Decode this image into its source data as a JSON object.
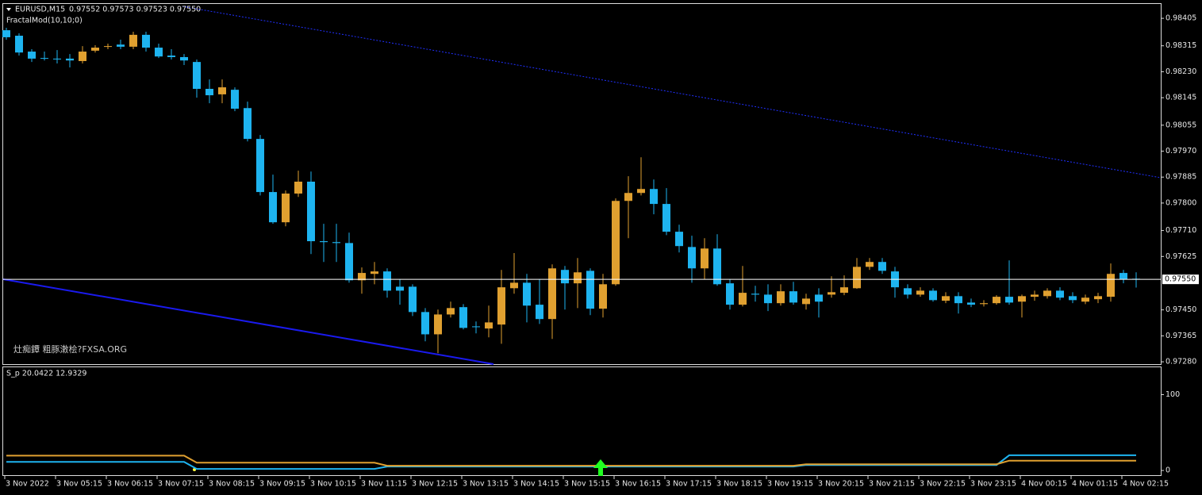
{
  "chart_data": [
    {
      "type": "candlestick",
      "title": "EURUSD,M15",
      "ohlc_text": "0.97552 0.97573 0.97523 0.97550",
      "indicator_label": "FractalMod(10,10;0)",
      "watermark": "灶痴鐔 粗豚潄桧?FXSA.ORG",
      "categories": [
        "3 Nov 2022",
        null,
        null,
        null,
        "3 Nov 05:15",
        null,
        null,
        null,
        "3 Nov 06:15",
        null,
        null,
        null,
        "3 Nov 07:15",
        null,
        null,
        null,
        "3 Nov 08:15",
        null,
        null,
        null,
        "3 Nov 09:15",
        null,
        null,
        null,
        "3 Nov 10:15",
        null,
        null,
        null,
        "3 Nov 11:15",
        null,
        null,
        null,
        "3 Nov 12:15",
        null,
        null,
        null,
        "3 Nov 13:15",
        null,
        null,
        null,
        "3 Nov 14:15",
        null,
        null,
        null,
        "3 Nov 15:15",
        null,
        null,
        null,
        "3 Nov 16:15",
        null,
        null,
        null,
        "3 Nov 17:15",
        null,
        null,
        null,
        "3 Nov 18:15",
        null,
        null,
        null,
        "3 Nov 19:15",
        null,
        null,
        null,
        "3 Nov 20:15",
        null,
        null,
        null,
        "3 Nov 21:15",
        null,
        null,
        null,
        "3 Nov 22:15",
        null,
        null,
        null,
        "3 Nov 23:15",
        null,
        null,
        null,
        "4 Nov 00:15",
        null,
        null,
        null,
        "4 Nov 01:15",
        null,
        null,
        null,
        "4 Nov 02:15",
        null
      ],
      "open": [
        0.98366,
        0.98348,
        0.98296,
        0.98275,
        0.98273,
        0.98273,
        0.98265,
        0.98299,
        0.98312,
        0.98319,
        0.98312,
        0.98351,
        0.98309,
        0.98283,
        0.98278,
        0.98262,
        0.98174,
        0.98156,
        0.98171,
        0.98111,
        0.9801,
        0.97836,
        0.97737,
        0.97831,
        0.9787,
        0.97675,
        0.97672,
        0.97669,
        0.97547,
        0.97568,
        0.97576,
        0.97526,
        0.97526,
        0.97443,
        0.9737,
        0.97435,
        0.97459,
        0.97396,
        0.97389,
        0.97402,
        0.97521,
        0.97539,
        0.97467,
        0.9742,
        0.97581,
        0.97537,
        0.97578,
        0.97454,
        0.97534,
        0.97807,
        0.97833,
        0.97846,
        0.97797,
        0.97706,
        0.97656,
        0.97586,
        0.97651,
        0.97537,
        0.97467,
        0.97503,
        0.975,
        0.97472,
        0.97511,
        0.97469,
        0.975,
        0.975,
        0.97506,
        0.97521,
        0.97591,
        0.97607,
        0.97576,
        0.97521,
        0.975,
        0.97513,
        0.9748,
        0.97495,
        0.97474,
        0.97469,
        0.97472,
        0.97493,
        0.97477,
        0.97493,
        0.97495,
        0.97513,
        0.97495,
        0.97477,
        0.97485,
        0.97493,
        0.97571,
        0.97552
      ],
      "high": [
        0.98374,
        0.98356,
        0.98304,
        0.98296,
        0.98301,
        0.98288,
        0.98314,
        0.98317,
        0.98322,
        0.98335,
        0.98361,
        0.98361,
        0.98322,
        0.98304,
        0.98288,
        0.9827,
        0.98205,
        0.98205,
        0.98179,
        0.98132,
        0.98023,
        0.97893,
        0.97841,
        0.97906,
        0.97903,
        0.97732,
        0.97732,
        0.97703,
        0.97589,
        0.97607,
        0.97586,
        0.9755,
        0.97534,
        0.97456,
        0.97451,
        0.97477,
        0.97469,
        0.97412,
        0.97464,
        0.97581,
        0.97636,
        0.97568,
        0.9755,
        0.97599,
        0.97594,
        0.9762,
        0.97586,
        0.97568,
        0.97815,
        0.97888,
        0.9795,
        0.97877,
        0.97849,
        0.97729,
        0.97693,
        0.97685,
        0.97698,
        0.9755,
        0.97594,
        0.97529,
        0.97534,
        0.97534,
        0.97542,
        0.97503,
        0.97521,
        0.9756,
        0.97563,
        0.9762,
        0.9762,
        0.9762,
        0.97591,
        0.97534,
        0.97524,
        0.97521,
        0.97508,
        0.97508,
        0.97487,
        0.97482,
        0.97498,
        0.97612,
        0.975,
        0.97513,
        0.97521,
        0.97524,
        0.97508,
        0.975,
        0.97506,
        0.97602,
        0.97581,
        0.97573
      ],
      "low": [
        0.98335,
        0.98283,
        0.98262,
        0.98267,
        0.98257,
        0.98244,
        0.98257,
        0.98293,
        0.98304,
        0.98304,
        0.98304,
        0.98296,
        0.98275,
        0.9827,
        0.98252,
        0.98145,
        0.98127,
        0.98127,
        0.98101,
        0.98002,
        0.97825,
        0.97732,
        0.97724,
        0.9782,
        0.97633,
        0.97607,
        0.97607,
        0.97539,
        0.97503,
        0.97534,
        0.9749,
        0.97467,
        0.9743,
        0.97347,
        0.97308,
        0.97425,
        0.97386,
        0.97373,
        0.9736,
        0.97339,
        0.97503,
        0.97409,
        0.97404,
        0.97355,
        0.97451,
        0.97456,
        0.97433,
        0.97425,
        0.97529,
        0.97685,
        0.97825,
        0.97763,
        0.97695,
        0.97638,
        0.97539,
        0.9755,
        0.97529,
        0.97451,
        0.97461,
        0.97477,
        0.97446,
        0.97464,
        0.97467,
        0.97451,
        0.97425,
        0.9749,
        0.97498,
        0.97519,
        0.97581,
        0.97568,
        0.9749,
        0.97487,
        0.97493,
        0.97477,
        0.97472,
        0.97438,
        0.97459,
        0.97461,
        0.97467,
        0.97467,
        0.97425,
        0.9748,
        0.97487,
        0.97482,
        0.97472,
        0.97469,
        0.97472,
        0.97477,
        0.97537,
        0.97523
      ],
      "close": [
        0.98343,
        0.98293,
        0.98273,
        0.98273,
        0.98272,
        0.98267,
        0.98296,
        0.98309,
        0.98314,
        0.98312,
        0.98351,
        0.98309,
        0.9828,
        0.98278,
        0.98267,
        0.98174,
        0.98153,
        0.98179,
        0.98109,
        0.9801,
        0.97836,
        0.97737,
        0.97831,
        0.9787,
        0.97675,
        0.97672,
        0.97669,
        0.97547,
        0.97571,
        0.97576,
        0.97513,
        0.97513,
        0.97443,
        0.9737,
        0.97435,
        0.97456,
        0.97391,
        0.97394,
        0.97409,
        0.97524,
        0.97539,
        0.97464,
        0.9742,
        0.97586,
        0.97537,
        0.97573,
        0.97454,
        0.97534,
        0.97807,
        0.97833,
        0.97846,
        0.97797,
        0.97706,
        0.97659,
        0.97586,
        0.97651,
        0.97534,
        0.97467,
        0.97506,
        0.975,
        0.97472,
        0.97511,
        0.97474,
        0.97487,
        0.97477,
        0.97508,
        0.97524,
        0.97591,
        0.97607,
        0.97578,
        0.97524,
        0.975,
        0.97513,
        0.97482,
        0.97495,
        0.97472,
        0.97467,
        0.97472,
        0.97493,
        0.97474,
        0.97495,
        0.975,
        0.97513,
        0.9749,
        0.97482,
        0.9749,
        0.97495,
        0.97568,
        0.9755,
        0.9755
      ],
      "up_color": "#e0a030",
      "down_color": "#1eb4f0",
      "ylim": [
        0.97275,
        0.98452
      ],
      "yticks": [
        0.98405,
        0.98315,
        {
          "value": 0.9823,
          "label": "0.98230"
        },
        0.98145,
        0.98055,
        {
          "value": 0.9797,
          "label": "0.97970"
        },
        0.97885,
        {
          "value": 0.978,
          "label": "0.97800"
        },
        {
          "value": 0.9771,
          "label": "0.97710"
        },
        0.97625,
        {
          "value": 0.9745,
          "label": "0.97450"
        },
        0.97365,
        {
          "value": 0.9728,
          "label": "0.97280"
        }
      ],
      "current_price": {
        "value": 0.9755,
        "label": "0.97550"
      }
    },
    {
      "type": "line",
      "title": "S_p 20.0422 12.9329",
      "series": [
        {
          "color": "#1eb4f0",
          "values": [
            11.3,
            11.3,
            11.3,
            11.3,
            11.3,
            11.3,
            11.3,
            11.3,
            11.3,
            11.3,
            11.3,
            11.3,
            11.3,
            11.3,
            11.3,
            2,
            2,
            2,
            2,
            2,
            2,
            2,
            2,
            2,
            2,
            2,
            2,
            2,
            2,
            2,
            5.2,
            5.2,
            5.2,
            5.2,
            5.2,
            5.2,
            5.2,
            5.2,
            5.2,
            5.2,
            5.2,
            5.2,
            5.2,
            5.2,
            5.2,
            5.2,
            5.2,
            5.2,
            5.2,
            5.2,
            5.2,
            5.2,
            5.2,
            5.2,
            5.2,
            5.2,
            5.2,
            5.2,
            5.2,
            5.2,
            5.2,
            5.2,
            5.2,
            7.2,
            7.2,
            7.2,
            7.2,
            7.2,
            7.2,
            7.2,
            7.2,
            7.2,
            7.2,
            7.2,
            7.2,
            7.2,
            7.2,
            7.2,
            7.2,
            20.0422,
            20.0422,
            20.0422,
            20.0422,
            20.0422,
            20.0422,
            20.0422,
            20.0422,
            20.0422,
            20.0422,
            20.0422
          ]
        },
        {
          "color": "#e0a030",
          "values": [
            19.6,
            19.6,
            19.6,
            19.6,
            19.6,
            19.6,
            19.6,
            19.6,
            19.6,
            19.6,
            19.6,
            19.6,
            19.6,
            19.6,
            19.6,
            10.3,
            10.3,
            10.3,
            10.3,
            10.3,
            10.3,
            10.3,
            10.3,
            10.3,
            10.3,
            10.3,
            10.3,
            10.3,
            10.3,
            10.3,
            6.2,
            6.2,
            6.2,
            6.2,
            6.2,
            6.2,
            6.2,
            6.2,
            6.2,
            6.2,
            6.2,
            6.2,
            6.2,
            6.2,
            6.2,
            6.2,
            6.2,
            6.2,
            6.2,
            6.2,
            6.2,
            6.2,
            6.2,
            6.2,
            6.2,
            6.2,
            6.2,
            6.2,
            6.2,
            6.2,
            6.2,
            6.2,
            6.2,
            8.2,
            8.2,
            8.2,
            8.2,
            8.2,
            8.2,
            8.2,
            8.2,
            8.2,
            8.2,
            8.2,
            8.2,
            8.2,
            8.2,
            8.2,
            8.2,
            12.9329,
            12.9329,
            12.9329,
            12.9329,
            12.9329,
            12.9329,
            12.9329,
            12.9329,
            12.9329,
            12.9329,
            12.9329
          ]
        }
      ],
      "ylim": [
        -6.2,
        136.1
      ],
      "yticks": [
        0,
        100
      ]
    }
  ]
}
